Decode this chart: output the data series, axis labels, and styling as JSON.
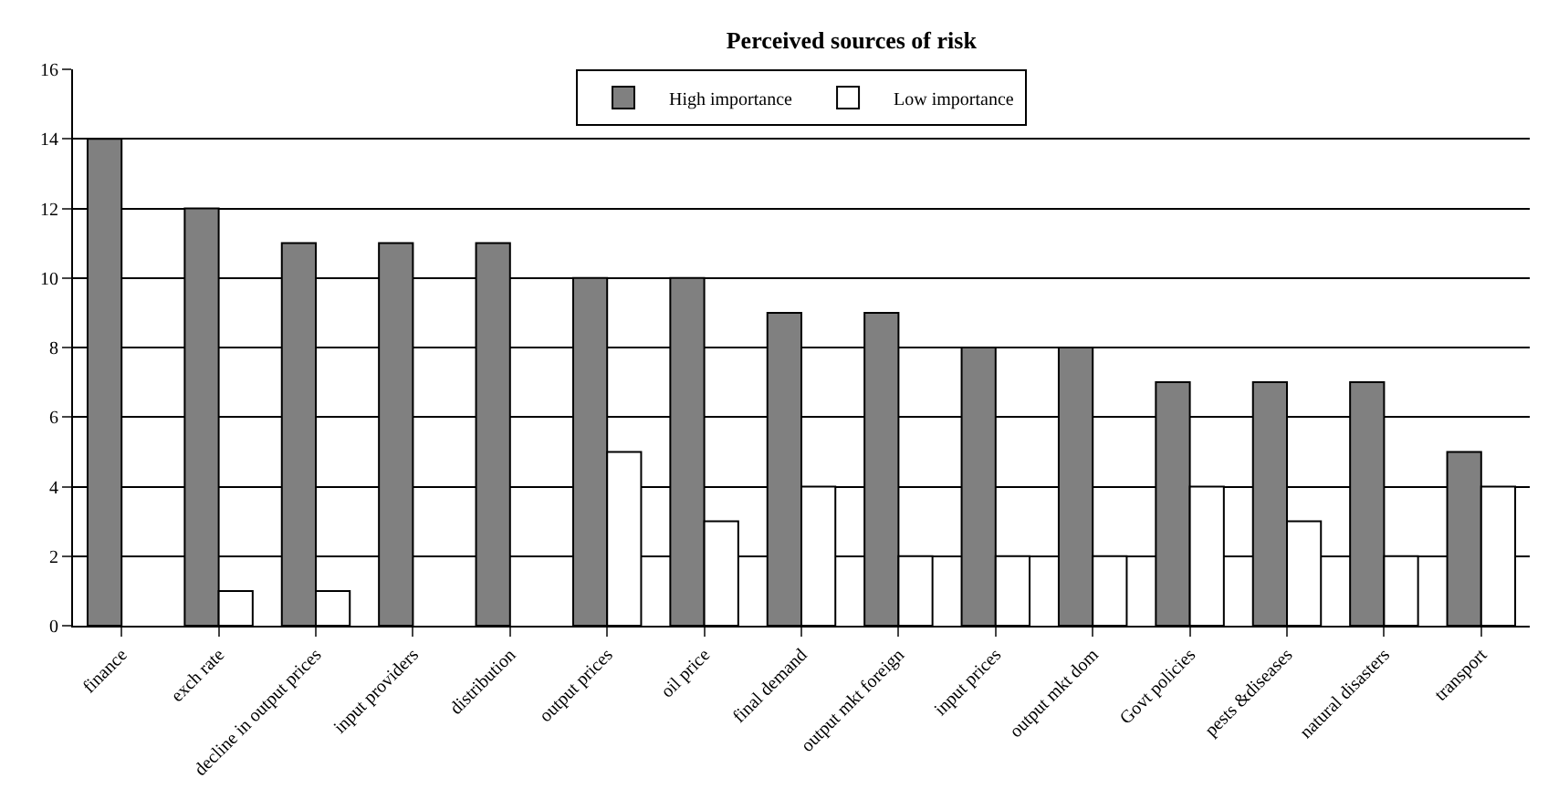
{
  "chart_data": {
    "type": "bar",
    "title": "Perceived sources of risk",
    "categories": [
      "finance",
      "exch rate",
      "decline in output prices",
      "input providers",
      "distribution",
      "output prices",
      "oil price",
      "final demand",
      "output mkt foreign",
      "input prices",
      "output mkt dom",
      "Govt policies",
      "pests &diseases",
      "natural disasters",
      "transport"
    ],
    "series": [
      {
        "name": "High importance",
        "color": "#808080",
        "values": [
          14,
          12,
          11,
          11,
          11,
          10,
          10,
          9,
          9,
          8,
          8,
          7,
          7,
          7,
          5
        ]
      },
      {
        "name": "Low importance",
        "color": "#ffffff",
        "values": [
          null,
          1,
          1,
          null,
          null,
          5,
          3,
          4,
          2,
          2,
          2,
          4,
          3,
          2,
          4
        ]
      }
    ],
    "ylim": [
      0,
      16
    ],
    "yticks": [
      0,
      2,
      4,
      6,
      8,
      10,
      12,
      14,
      16
    ],
    "grid": "y",
    "legend": "top"
  }
}
